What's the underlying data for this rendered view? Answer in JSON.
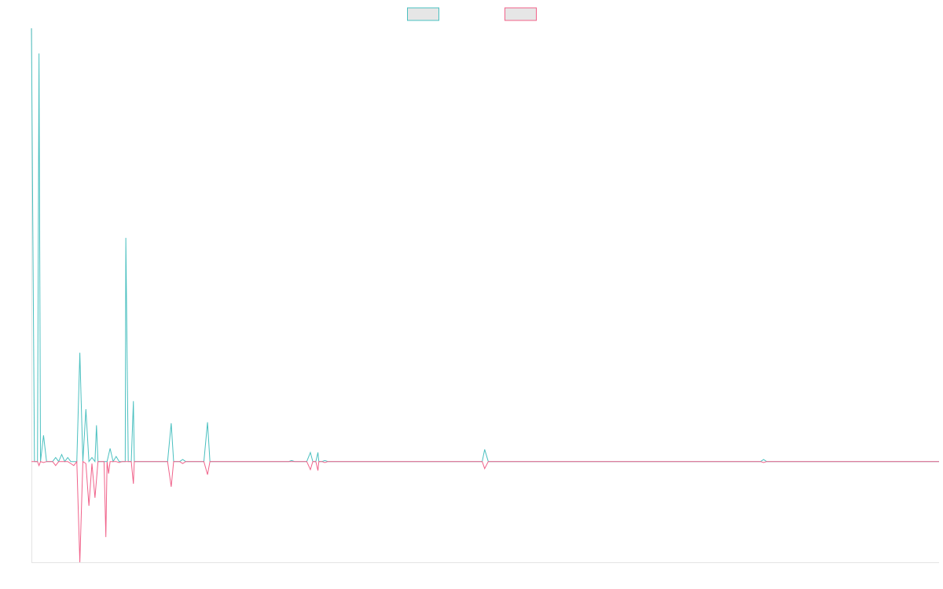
{
  "chart_data": {
    "type": "line",
    "title": "",
    "xlabel": "",
    "ylabel": "",
    "grid": false,
    "legend_position": "top-center",
    "x_range": [
      0,
      300
    ],
    "y_range": [
      -100,
      430
    ],
    "series": [
      {
        "color": "#4bc0c0",
        "points": [
          [
            0,
            430
          ],
          [
            1,
            0
          ],
          [
            2,
            0
          ],
          [
            2.5,
            405
          ],
          [
            3,
            0
          ],
          [
            4,
            26
          ],
          [
            5,
            0
          ],
          [
            7,
            0
          ],
          [
            8,
            4
          ],
          [
            9,
            0
          ],
          [
            10,
            7
          ],
          [
            11,
            0
          ],
          [
            12,
            4
          ],
          [
            13,
            0
          ],
          [
            15,
            0
          ],
          [
            16,
            108
          ],
          [
            17,
            0
          ],
          [
            18,
            52
          ],
          [
            19,
            0
          ],
          [
            20,
            4
          ],
          [
            21,
            0
          ],
          [
            21.5,
            36
          ],
          [
            22,
            0
          ],
          [
            25,
            0
          ],
          [
            26,
            13
          ],
          [
            27,
            0
          ],
          [
            28,
            5
          ],
          [
            29,
            0
          ],
          [
            31,
            0
          ],
          [
            31.2,
            222
          ],
          [
            32,
            0
          ],
          [
            33,
            0
          ],
          [
            33.7,
            60
          ],
          [
            34,
            0
          ],
          [
            45,
            0
          ],
          [
            46.2,
            38
          ],
          [
            47,
            0
          ],
          [
            49,
            0
          ],
          [
            50,
            2
          ],
          [
            51,
            0
          ],
          [
            57,
            0
          ],
          [
            58.2,
            39
          ],
          [
            59,
            0
          ],
          [
            85,
            0
          ],
          [
            86,
            1
          ],
          [
            87,
            0
          ],
          [
            91,
            0
          ],
          [
            92.2,
            9
          ],
          [
            93,
            0
          ],
          [
            94,
            0
          ],
          [
            94.7,
            9
          ],
          [
            95,
            0
          ],
          [
            96,
            0
          ],
          [
            97,
            1
          ],
          [
            98,
            0
          ],
          [
            149,
            0
          ],
          [
            149.8,
            12
          ],
          [
            151,
            0
          ],
          [
            241,
            0
          ],
          [
            242,
            2
          ],
          [
            243,
            0
          ],
          [
            300,
            0
          ]
        ]
      },
      {
        "color": "#f0628a",
        "points": [
          [
            0,
            0
          ],
          [
            2,
            0
          ],
          [
            2.5,
            -4
          ],
          [
            3,
            0
          ],
          [
            4,
            -1
          ],
          [
            5,
            0
          ],
          [
            7,
            0
          ],
          [
            8,
            -4
          ],
          [
            9,
            0
          ],
          [
            12,
            0
          ],
          [
            13,
            -2
          ],
          [
            14,
            -4
          ],
          [
            15,
            0
          ],
          [
            16,
            -100
          ],
          [
            17,
            0
          ],
          [
            18,
            -2
          ],
          [
            19,
            -44
          ],
          [
            20,
            -2
          ],
          [
            21,
            -36
          ],
          [
            22,
            0
          ],
          [
            24,
            0
          ],
          [
            24.6,
            -75
          ],
          [
            25,
            0
          ],
          [
            25.5,
            -12
          ],
          [
            26,
            0
          ],
          [
            28,
            0
          ],
          [
            29,
            -1
          ],
          [
            30,
            0
          ],
          [
            33,
            0
          ],
          [
            33.7,
            -22
          ],
          [
            34,
            0
          ],
          [
            45,
            0
          ],
          [
            46.2,
            -25
          ],
          [
            47,
            0
          ],
          [
            49,
            0
          ],
          [
            50,
            -2
          ],
          [
            51,
            0
          ],
          [
            57,
            0
          ],
          [
            58.2,
            -13
          ],
          [
            59,
            0
          ],
          [
            91,
            0
          ],
          [
            92.2,
            -8
          ],
          [
            93,
            0
          ],
          [
            94,
            0
          ],
          [
            94.7,
            -9
          ],
          [
            95,
            0
          ],
          [
            96,
            0
          ],
          [
            97,
            -1
          ],
          [
            98,
            0
          ],
          [
            149,
            0
          ],
          [
            149.8,
            -7
          ],
          [
            151,
            0
          ],
          [
            241,
            0
          ],
          [
            242,
            -1
          ],
          [
            243,
            0
          ],
          [
            300,
            0
          ]
        ]
      }
    ]
  }
}
